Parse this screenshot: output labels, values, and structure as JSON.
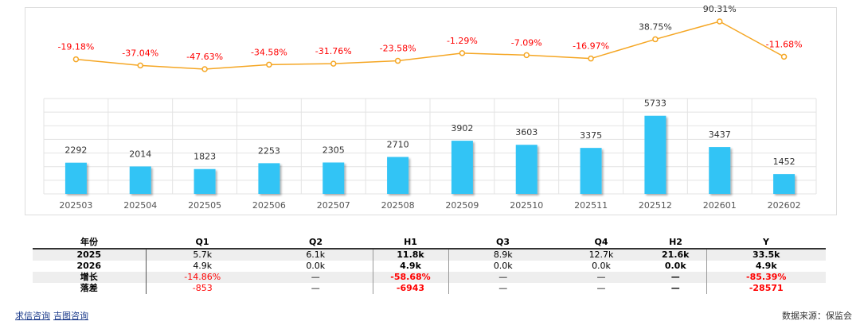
{
  "chart_data": [
    {
      "type": "line",
      "color": "#f5a623",
      "values": [
        -19.18,
        -37.04,
        -47.63,
        -34.58,
        -31.76,
        -23.58,
        -1.29,
        -7.09,
        -16.97,
        38.75,
        90.31,
        -11.68
      ],
      "value_labels": [
        "-19.18%",
        "-37.04%",
        "-47.63%",
        "-34.58%",
        "-31.76%",
        "-23.58%",
        "-1.29%",
        "-7.09%",
        "-16.97%",
        "38.75%",
        "90.31%",
        "-11.68%"
      ]
    },
    {
      "type": "bar",
      "color": "#33c4f5",
      "categories": [
        "202503",
        "202504",
        "202505",
        "202506",
        "202507",
        "202508",
        "202509",
        "202510",
        "202511",
        "202512",
        "202601",
        "202602"
      ],
      "values": [
        2292,
        2014,
        1823,
        2253,
        2305,
        2710,
        3902,
        3603,
        3375,
        5733,
        3437,
        1452
      ],
      "ylim": [
        0,
        7000
      ],
      "yticks": [
        0,
        1000,
        2000,
        3000,
        4000,
        5000,
        6000,
        7000
      ],
      "grid": true
    }
  ],
  "table": {
    "header": [
      "年份",
      "Q1",
      "Q2",
      "H1",
      "Q3",
      "Q4",
      "H2",
      "Y"
    ],
    "rows": [
      [
        "2025",
        "5.7k",
        "6.1k",
        "11.8k",
        "8.9k",
        "12.7k",
        "21.6k",
        "33.5k"
      ],
      [
        "2026",
        "4.9k",
        "0.0k",
        "4.9k",
        "0.0k",
        "0.0k",
        "0.0k",
        "4.9k"
      ],
      [
        "增长",
        "-14.86%",
        "—",
        "-58.68%",
        "—",
        "—",
        "—",
        "-85.39%"
      ],
      [
        "落差",
        "-853",
        "—",
        "-6943",
        "—",
        "—",
        "—",
        "-28571"
      ]
    ]
  },
  "footer": {
    "links": [
      "求信咨询",
      "吉图咨询"
    ],
    "source": "数据来源：保监会"
  }
}
